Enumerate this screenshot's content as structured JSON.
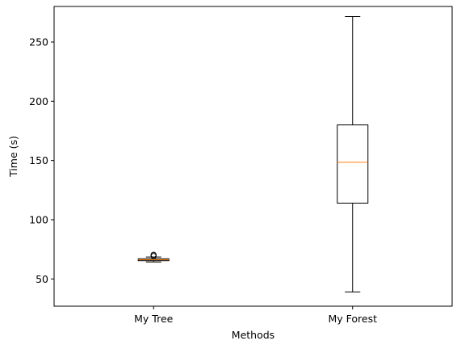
{
  "chart_data": {
    "type": "box",
    "xlabel": "Methods",
    "ylabel": "Time (s)",
    "ylim": [
      27,
      280
    ],
    "yticks": [
      50,
      100,
      150,
      200,
      250
    ],
    "categories": [
      "My Tree",
      "My Forest"
    ],
    "boxes": [
      {
        "name": "My Tree",
        "whisker_low": 64.3,
        "q1": 65.4,
        "median": 66.2,
        "q3": 67.0,
        "whisker_high": 68.5,
        "outliers": [
          69.4,
          70.4
        ]
      },
      {
        "name": "My Forest",
        "whisker_low": 39,
        "q1": 114,
        "median": 148.5,
        "q3": 180,
        "whisker_high": 271.5,
        "outliers": []
      }
    ],
    "grid": false,
    "colors": {
      "box": "#000000",
      "median": "#ff7f0e"
    }
  }
}
